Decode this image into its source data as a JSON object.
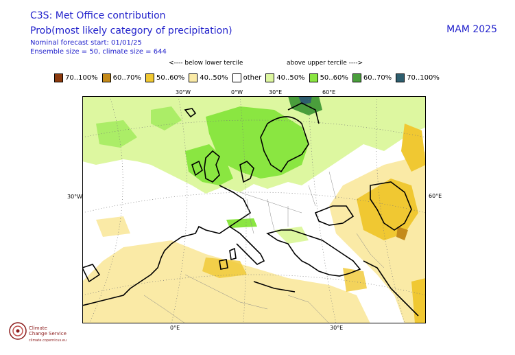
{
  "header": {
    "title": "C3S: Met Office contribution",
    "subtitle": "Prob(most likely category of precipitation)",
    "forecast_start": "Nominal forecast start: 01/01/25",
    "ensemble": "Ensemble size = 50, climate size = 644",
    "season": "MAM 2025"
  },
  "tercile_labels": {
    "below": "<---- below lower tercile",
    "above": "above upper tercile ---->"
  },
  "legend": [
    {
      "label": "70..100%",
      "color": "#8b3a0e"
    },
    {
      "label": "60..70%",
      "color": "#c48a1a"
    },
    {
      "label": "50..60%",
      "color": "#f0c832"
    },
    {
      "label": "40..50%",
      "color": "#faeaa6"
    },
    {
      "label": "other",
      "color": "#ffffff"
    },
    {
      "label": "40..50%",
      "color": "#ddf7a0"
    },
    {
      "label": "50..60%",
      "color": "#8ae641"
    },
    {
      "label": "60..70%",
      "color": "#4a9e3c"
    },
    {
      "label": "70..100%",
      "color": "#2e5e6e"
    }
  ],
  "map_labels": {
    "top_lon_1": "30°W",
    "top_lon_2": "0°W",
    "top_lon_3": "30°E",
    "top_lon_4": "60°E",
    "left_lat": "30°W",
    "right_lat": "60°E",
    "bottom_lon_1": "0°E",
    "bottom_lon_2": "30°E"
  },
  "logo": {
    "line1": "Climate",
    "line2": "Change Service",
    "url": "climate.copernicus.eu"
  }
}
